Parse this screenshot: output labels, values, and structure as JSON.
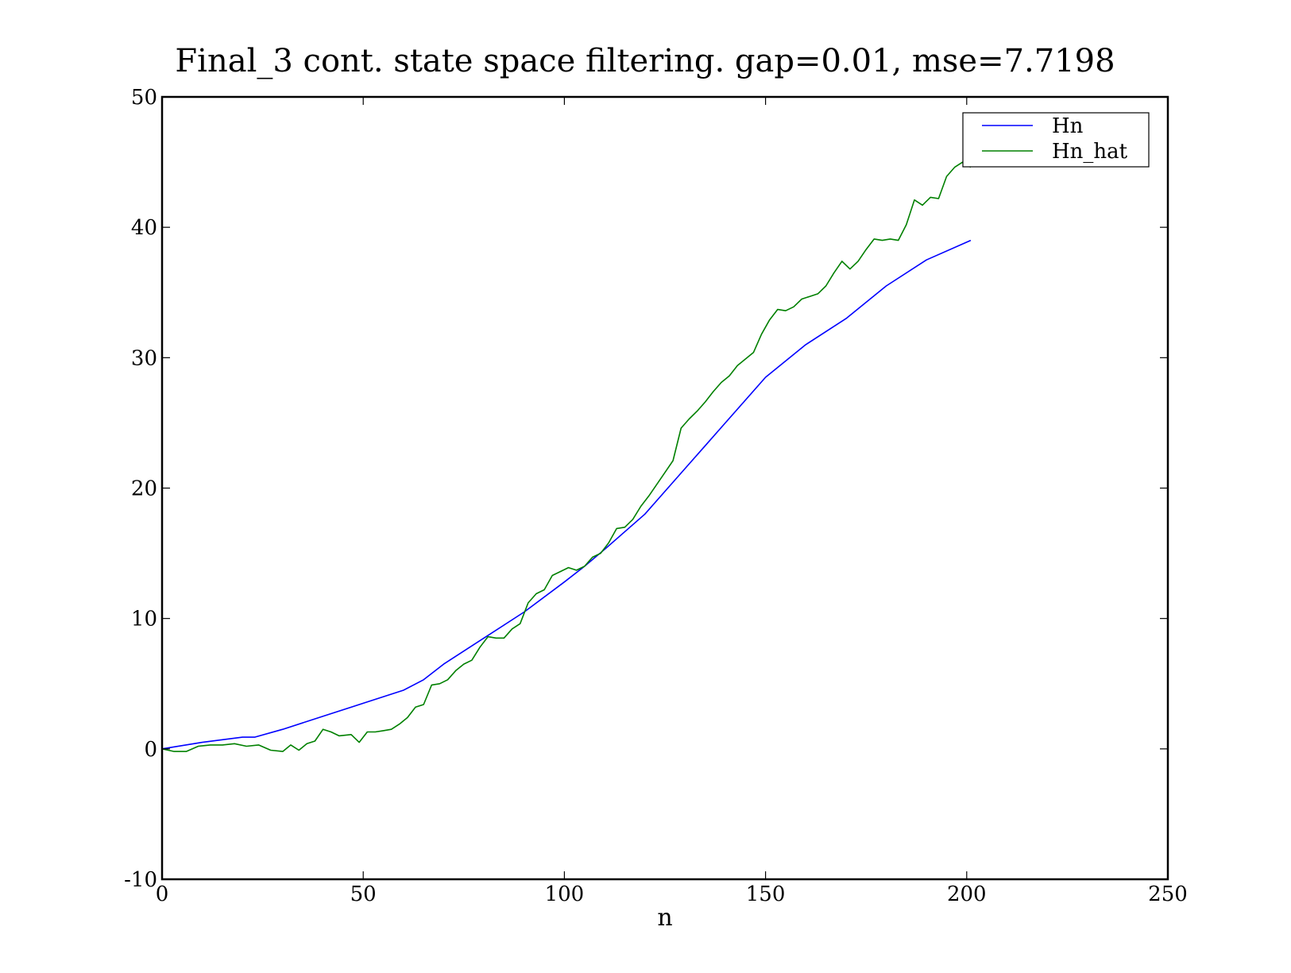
{
  "chart_data": {
    "type": "line",
    "title": "Final_3 cont. state space filtering. gap=0.01, mse=7.7198",
    "xlabel": "n",
    "ylabel": "",
    "xlim": [
      0,
      250
    ],
    "ylim": [
      -10,
      50
    ],
    "xticks": [
      0,
      50,
      100,
      150,
      200,
      250
    ],
    "yticks": [
      -10,
      0,
      10,
      20,
      30,
      40,
      50
    ],
    "xtick_labels": [
      "0",
      "50",
      "100",
      "150",
      "200",
      "250"
    ],
    "ytick_labels": [
      "-10",
      "0",
      "10",
      "20",
      "30",
      "40",
      "50"
    ],
    "grid": false,
    "legend_position": "top-right",
    "series": [
      {
        "name": "Hn",
        "color": "#0000ff",
        "x": [
          0,
          10,
          20,
          23,
          30,
          40,
          50,
          60,
          65,
          70,
          80,
          90,
          100,
          105,
          110,
          120,
          130,
          140,
          150,
          160,
          170,
          180,
          190,
          201
        ],
        "y": [
          0,
          0.5,
          0.9,
          0.9,
          1.5,
          2.5,
          3.5,
          4.5,
          5.3,
          6.5,
          8.5,
          10.5,
          12.8,
          14,
          15.3,
          18,
          21.5,
          25,
          28.5,
          31,
          33,
          35.5,
          37.5,
          39
        ]
      },
      {
        "name": "Hn_hat",
        "color": "#008000",
        "x": [
          0,
          3,
          6,
          9,
          12,
          15,
          18,
          21,
          24,
          27,
          30,
          32,
          34,
          36,
          38,
          40,
          42,
          44,
          47,
          49,
          51,
          53,
          55,
          57,
          59,
          61,
          63,
          65,
          67,
          69,
          71,
          73,
          75,
          77,
          79,
          81,
          83,
          85,
          87,
          89,
          91,
          93,
          95,
          97,
          99,
          101,
          103,
          105,
          107,
          109,
          111,
          113,
          115,
          117,
          119,
          121,
          123,
          125,
          127,
          129,
          131,
          133,
          135,
          137,
          139,
          141,
          143,
          145,
          147,
          149,
          151,
          153,
          155,
          157,
          159,
          161,
          163,
          165,
          167,
          169,
          171,
          173,
          175,
          177,
          179,
          181,
          183,
          185,
          187,
          189,
          191,
          193,
          195,
          197,
          199,
          201
        ],
        "y": [
          0,
          -0.2,
          -0.2,
          0.2,
          0.3,
          0.3,
          0.4,
          0.2,
          0.3,
          -0.1,
          -0.2,
          0.3,
          -0.1,
          0.4,
          0.6,
          1.5,
          1.3,
          1.0,
          1.1,
          0.5,
          1.3,
          1.3,
          1.4,
          1.5,
          1.9,
          2.4,
          3.2,
          3.4,
          4.9,
          5.0,
          5.3,
          6.0,
          6.5,
          6.8,
          7.8,
          8.6,
          8.5,
          8.5,
          9.2,
          9.6,
          11.2,
          11.9,
          12.2,
          13.3,
          13.6,
          13.9,
          13.7,
          14.0,
          14.7,
          15.0,
          15.8,
          16.9,
          17.0,
          17.6,
          18.6,
          19.4,
          20.3,
          21.2,
          22.1,
          24.6,
          25.3,
          25.9,
          26.6,
          27.4,
          28.1,
          28.6,
          29.4,
          29.9,
          30.4,
          31.8,
          32.9,
          33.7,
          33.6,
          33.9,
          34.5,
          34.7,
          34.9,
          35.5,
          36.5,
          37.4,
          36.8,
          37.4,
          38.3,
          39.1,
          39.0,
          39.1,
          39.0,
          40.2,
          42.1,
          41.7,
          42.3,
          42.2,
          43.9,
          44.6,
          45.0,
          44.6
        ]
      }
    ]
  }
}
